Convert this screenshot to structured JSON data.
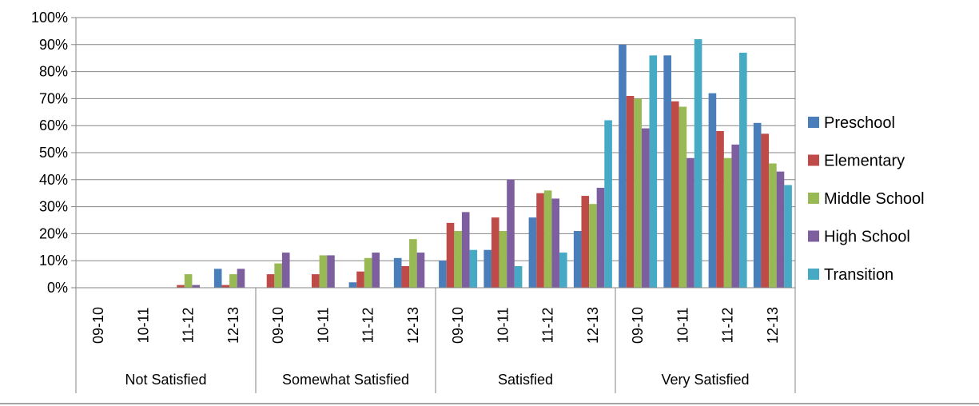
{
  "chart_data": {
    "type": "bar",
    "groups": [
      "Not Satisfied",
      "Somewhat Satisfied",
      "Satisfied",
      "Very Satisfied"
    ],
    "years": [
      "09-10",
      "10-11",
      "11-12",
      "12-13"
    ],
    "y_ticks": [
      "0%",
      "10%",
      "20%",
      "30%",
      "40%",
      "50%",
      "60%",
      "70%",
      "80%",
      "90%",
      "100%"
    ],
    "ylim": [
      0,
      100
    ],
    "grid": true,
    "legend_position": "right",
    "series": [
      {
        "name": "Preschool",
        "color": "#4a7ebb",
        "values": [
          0,
          0,
          0,
          7,
          0,
          0,
          2,
          11,
          10,
          14,
          26,
          21,
          90,
          86,
          72,
          61
        ]
      },
      {
        "name": "Elementary",
        "color": "#be4b48",
        "values": [
          0,
          0,
          1,
          1,
          5,
          5,
          6,
          8,
          24,
          26,
          35,
          34,
          71,
          69,
          58,
          57
        ]
      },
      {
        "name": "Middle School",
        "color": "#98b954",
        "values": [
          0,
          0,
          5,
          5,
          9,
          12,
          11,
          18,
          21,
          21,
          36,
          31,
          70,
          67,
          48,
          46
        ]
      },
      {
        "name": "High School",
        "color": "#7d5fa0",
        "values": [
          0,
          0,
          1,
          7,
          13,
          12,
          13,
          13,
          28,
          40,
          33,
          37,
          59,
          48,
          53,
          43
        ]
      },
      {
        "name": "Transition",
        "color": "#46aac5",
        "values": [
          0,
          0,
          0,
          0,
          0,
          0,
          0,
          0,
          14,
          8,
          13,
          62,
          86,
          92,
          87,
          38
        ]
      }
    ]
  }
}
